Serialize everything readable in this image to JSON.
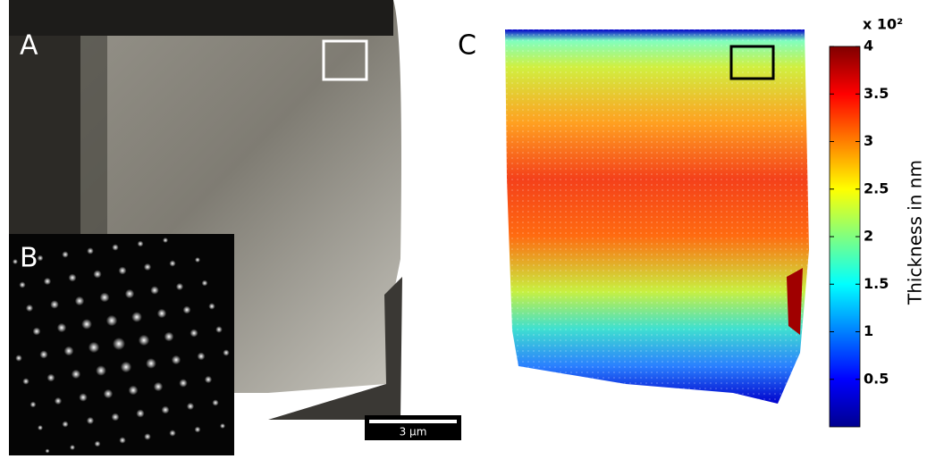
{
  "panels": {
    "a": "A",
    "b": "B",
    "c": "C"
  },
  "scale_bar": {
    "label": "3 µm"
  },
  "colorbar": {
    "multiplier": "x 10²",
    "label": "Thickness in nm",
    "lim": [
      0,
      4
    ],
    "ticks": [
      0.5,
      1,
      1.5,
      2,
      2.5,
      3,
      3.5,
      4
    ]
  }
}
